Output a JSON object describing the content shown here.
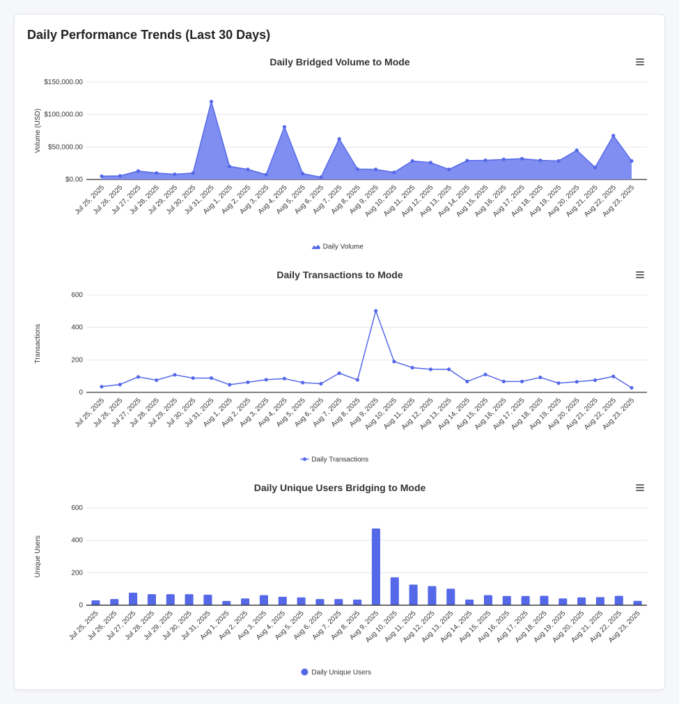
{
  "page": {
    "title": "Daily Performance Trends (Last 30 Days)"
  },
  "colors": {
    "series": "#5468e8",
    "area_fill": "#7f8ef0",
    "grid": "#e6e6e6",
    "axis": "#333333",
    "text": "#333333",
    "menu": "#666666"
  },
  "chart_data": [
    {
      "type": "area",
      "title": "Daily Bridged Volume to Mode",
      "xlabel": "",
      "ylabel": "Volume (USD)",
      "ylim": [
        0,
        150000
      ],
      "yticks": [
        0,
        50000,
        100000,
        150000
      ],
      "ytick_labels": [
        "$0.00",
        "$50,000.00",
        "$100,000.00",
        "$150,000.00"
      ],
      "legend": "Daily Volume",
      "legend_position": "bottom-center",
      "categories": [
        "Jul 25, 2025",
        "Jul 26, 2025",
        "Jul 27, 2025",
        "Jul 28, 2025",
        "Jul 29, 2025",
        "Jul 30, 2025",
        "Jul 31, 2025",
        "Aug 1, 2025",
        "Aug 2, 2025",
        "Aug 3, 2025",
        "Aug 4, 2025",
        "Aug 5, 2025",
        "Aug 6, 2025",
        "Aug 7, 2025",
        "Aug 8, 2025",
        "Aug 9, 2025",
        "Aug 10, 2025",
        "Aug 11, 2025",
        "Aug 12, 2025",
        "Aug 13, 2025",
        "Aug 14, 2025",
        "Aug 15, 2025",
        "Aug 16, 2025",
        "Aug 17, 2025",
        "Aug 18, 2025",
        "Aug 19, 2025",
        "Aug 20, 2025",
        "Aug 21, 2025",
        "Aug 22, 2025",
        "Aug 23, 2025"
      ],
      "values": [
        5000,
        5500,
        13000,
        10000,
        8000,
        10000,
        120000,
        20000,
        15500,
        7500,
        81000,
        9000,
        3500,
        62500,
        16000,
        15500,
        11000,
        28500,
        26000,
        15500,
        29000,
        29500,
        31000,
        32000,
        29500,
        28500,
        45000,
        18500,
        67500,
        28500
      ]
    },
    {
      "type": "line",
      "title": "Daily Transactions to Mode",
      "xlabel": "",
      "ylabel": "Transactions",
      "ylim": [
        0,
        600
      ],
      "yticks": [
        0,
        200,
        400,
        600
      ],
      "ytick_labels": [
        "0",
        "200",
        "400",
        "600"
      ],
      "legend": "Daily Transactions",
      "legend_position": "bottom-center",
      "categories": [
        "Jul 25, 2025",
        "Jul 26, 2025",
        "Jul 27, 2025",
        "Jul 28, 2025",
        "Jul 29, 2025",
        "Jul 30, 2025",
        "Jul 31, 2025",
        "Aug 1, 2025",
        "Aug 2, 2025",
        "Aug 3, 2025",
        "Aug 4, 2025",
        "Aug 5, 2025",
        "Aug 6, 2025",
        "Aug 7, 2025",
        "Aug 8, 2025",
        "Aug 9, 2025",
        "Aug 10, 2025",
        "Aug 11, 2025",
        "Aug 12, 2025",
        "Aug 13, 2025",
        "Aug 14, 2025",
        "Aug 15, 2025",
        "Aug 16, 2025",
        "Aug 17, 2025",
        "Aug 18, 2025",
        "Aug 19, 2025",
        "Aug 20, 2025",
        "Aug 21, 2025",
        "Aug 22, 2025",
        "Aug 23, 2025"
      ],
      "values": [
        35,
        48,
        95,
        75,
        108,
        88,
        88,
        47,
        62,
        78,
        85,
        60,
        53,
        118,
        77,
        502,
        190,
        152,
        142,
        142,
        67,
        110,
        67,
        67,
        92,
        57,
        65,
        75,
        98,
        28
      ]
    },
    {
      "type": "bar",
      "title": "Daily Unique Users Bridging to Mode",
      "xlabel": "",
      "ylabel": "Unique Users",
      "ylim": [
        0,
        600
      ],
      "yticks": [
        0,
        200,
        400,
        600
      ],
      "ytick_labels": [
        "0",
        "200",
        "400",
        "600"
      ],
      "legend": "Daily Unique Users",
      "legend_position": "bottom-center",
      "categories": [
        "Jul 25, 2025",
        "Jul 26, 2025",
        "Jul 27, 2025",
        "Jul 28, 2025",
        "Jul 29, 2025",
        "Jul 30, 2025",
        "Jul 31, 2025",
        "Aug 1, 2025",
        "Aug 2, 2025",
        "Aug 3, 2025",
        "Aug 4, 2025",
        "Aug 5, 2025",
        "Aug 6, 2025",
        "Aug 7, 2025",
        "Aug 8, 2025",
        "Aug 9, 2025",
        "Aug 10, 2025",
        "Aug 11, 2025",
        "Aug 12, 2025",
        "Aug 13, 2025",
        "Aug 14, 2025",
        "Aug 15, 2025",
        "Aug 16, 2025",
        "Aug 17, 2025",
        "Aug 18, 2025",
        "Aug 19, 2025",
        "Aug 20, 2025",
        "Aug 21, 2025",
        "Aug 22, 2025",
        "Aug 23, 2025"
      ],
      "values": [
        30,
        38,
        77,
        68,
        68,
        68,
        65,
        26,
        42,
        62,
        52,
        48,
        38,
        38,
        35,
        473,
        172,
        127,
        118,
        102,
        35,
        62,
        57,
        57,
        58,
        42,
        48,
        50,
        58,
        27
      ]
    }
  ]
}
